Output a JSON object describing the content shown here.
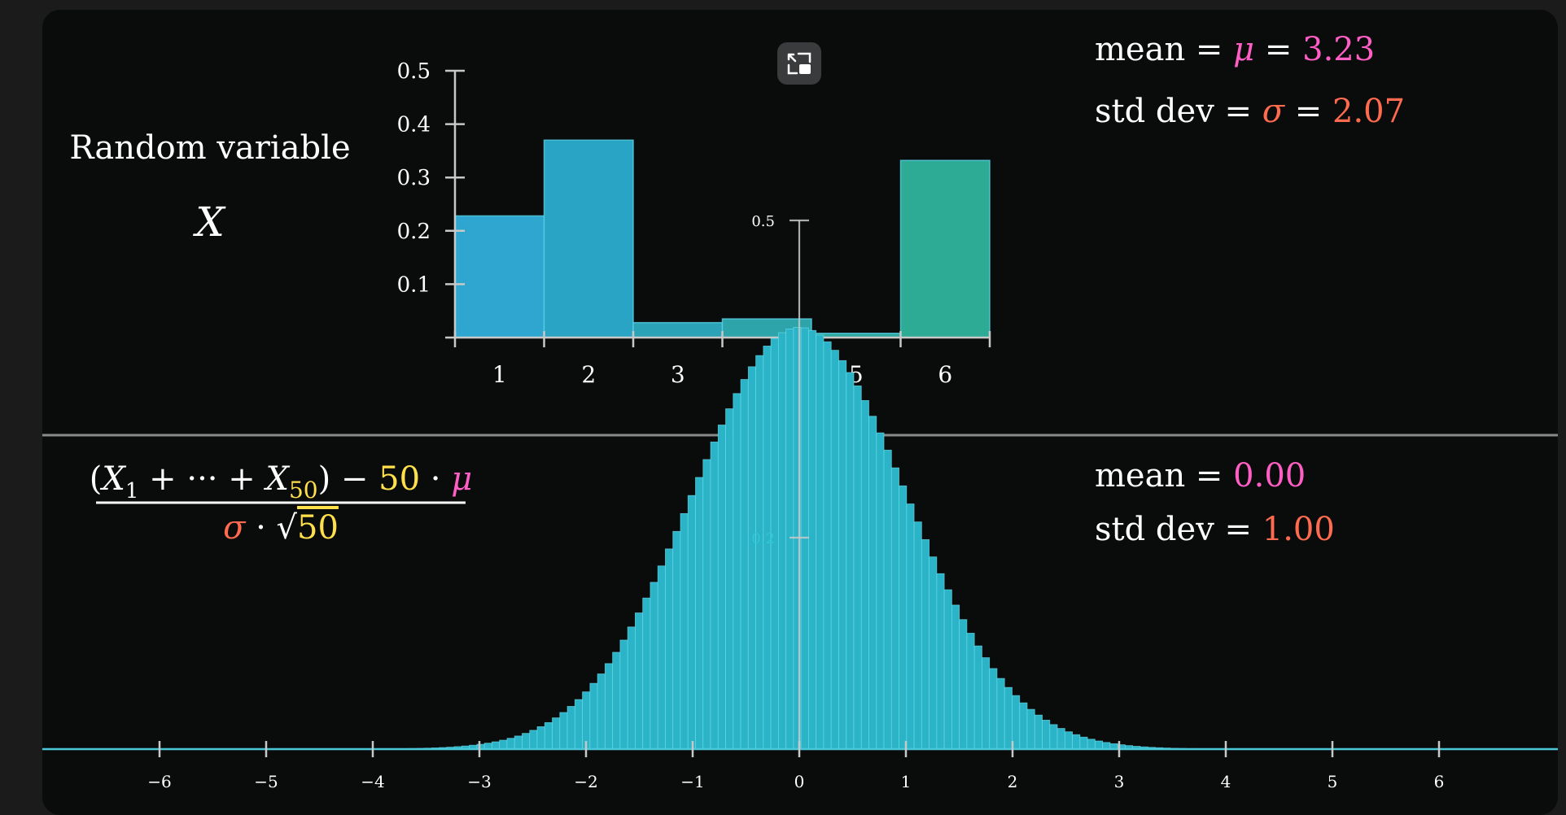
{
  "top_stats": {
    "mean_word": "mean",
    "mean_symbol": "μ",
    "mean_value": "3.23",
    "std_word": "std dev",
    "std_symbol": "σ",
    "std_value": "2.07"
  },
  "rv_label": {
    "line1": "Random variable",
    "line2": "X"
  },
  "formula": {
    "numerator": {
      "open": "(",
      "x1": "X",
      "sub1": "1",
      "plus_dots": " + ··· + ",
      "xn": "X",
      "subn": "50",
      "close": ")",
      "minus": " − ",
      "n": "50",
      "dot": " · ",
      "mu": "μ"
    },
    "denominator": {
      "sigma": "σ",
      "dot": " · ",
      "sqrt": "√",
      "n": "50"
    }
  },
  "bottom_stats": {
    "mean_word": "mean",
    "mean_value": "0.00",
    "std_word": "std dev",
    "std_value": "1.00"
  },
  "colors": {
    "pink": "#ff5ec4",
    "orange": "#ff6b4f",
    "yellow": "#ffe04a",
    "white": "#ffffff",
    "axis": "#c8c8c8"
  },
  "chart_data": [
    {
      "type": "bar",
      "categories": [
        "1",
        "2",
        "3",
        "4",
        "5",
        "6"
      ],
      "values": [
        0.228,
        0.37,
        0.028,
        0.035,
        0.008,
        0.332
      ],
      "yticks": [
        "0.1",
        "0.2",
        "0.3",
        "0.4",
        "0.5"
      ],
      "ylim": [
        0,
        0.5
      ],
      "bar_colors": [
        "#2ea6cf",
        "#2aa4c4",
        "#2ba2b6",
        "#2ca4a9",
        "#2ca89f",
        "#2eab94"
      ]
    },
    {
      "type": "bar",
      "xlim": [
        -6.7,
        6.7
      ],
      "ylim": [
        0,
        0.5
      ],
      "xticks": [
        "−6",
        "−5",
        "−4",
        "−3",
        "−2",
        "−1",
        "0",
        "1",
        "2",
        "3",
        "4",
        "5",
        "6"
      ],
      "yticks": [
        "0.2",
        "0.5"
      ],
      "bin_width": 0.0707,
      "distribution": "standard normal density histogram centered at 0 with std dev 1",
      "bar_color": "#2bb4c8"
    }
  ]
}
